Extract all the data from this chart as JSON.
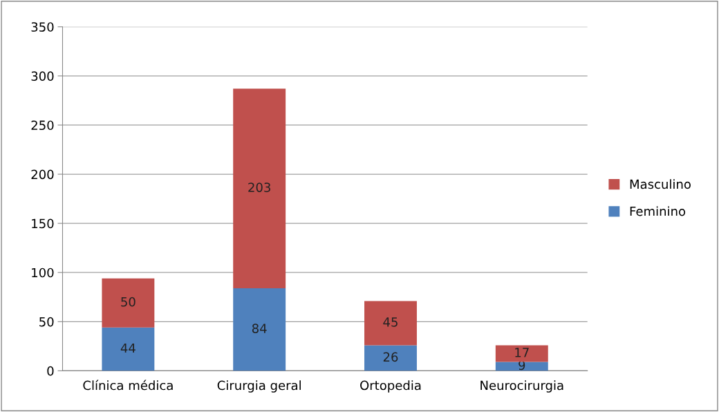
{
  "chart_data": {
    "type": "bar",
    "stacked": true,
    "categories": [
      "Clínica médica",
      "Cirurgia geral",
      "Ortopedia",
      "Neurocirurgia"
    ],
    "series": [
      {
        "name": "Feminino",
        "color": "#4f81bd",
        "values": [
          44,
          84,
          26,
          9
        ]
      },
      {
        "name": "Masculino",
        "color": "#c0504d",
        "values": [
          50,
          203,
          45,
          17
        ]
      }
    ],
    "ylim": [
      0,
      350
    ],
    "yticks": [
      0,
      50,
      100,
      150,
      200,
      250,
      300,
      350
    ],
    "grid": "y",
    "legend": "right",
    "data_labels": true
  }
}
